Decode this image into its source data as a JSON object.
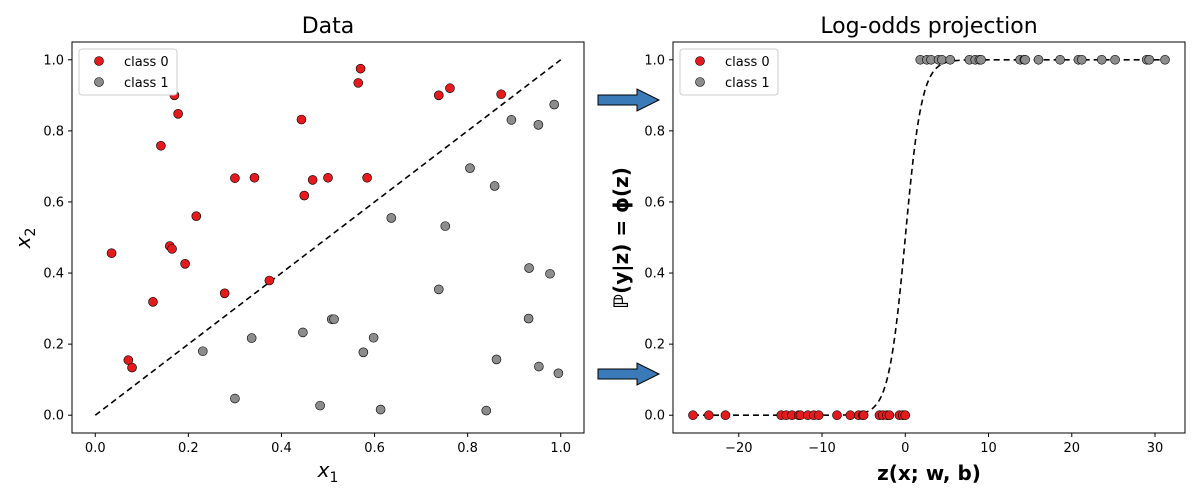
{
  "colors": {
    "class0": "#e41a1c",
    "class1": "#8c8c8c",
    "arrow": "#3a7ab8",
    "line": "#000000"
  },
  "chart_data": [
    {
      "type": "scatter",
      "title": "Data",
      "xlabel": "x",
      "xlabel_sub": "1",
      "ylabel": "x",
      "ylabel_sub": "2",
      "xlim": [
        -0.05,
        1.05
      ],
      "ylim": [
        -0.05,
        1.05
      ],
      "xticks": [
        "0.0",
        "0.2",
        "0.4",
        "0.6",
        "0.8",
        "1.0"
      ],
      "yticks": [
        "0.0",
        "0.2",
        "0.4",
        "0.6",
        "0.8",
        "1.0"
      ],
      "grid": false,
      "legend_position": "upper-left",
      "boundary_line": {
        "x": [
          0.0,
          1.0
        ],
        "y": [
          0.0,
          1.0
        ],
        "style": "dashed"
      },
      "series": [
        {
          "name": "class 0",
          "points": [
            [
              0.57,
              0.975
            ],
            [
              0.565,
              0.935
            ],
            [
              0.17,
              0.9
            ],
            [
              0.762,
              0.92
            ],
            [
              0.738,
              0.9
            ],
            [
              0.872,
              0.903
            ],
            [
              0.178,
              0.848
            ],
            [
              0.443,
              0.832
            ],
            [
              0.141,
              0.758
            ],
            [
              0.3,
              0.667
            ],
            [
              0.342,
              0.668
            ],
            [
              0.467,
              0.662
            ],
            [
              0.5,
              0.668
            ],
            [
              0.584,
              0.668
            ],
            [
              0.449,
              0.618
            ],
            [
              0.217,
              0.56
            ],
            [
              0.035,
              0.456
            ],
            [
              0.16,
              0.476
            ],
            [
              0.165,
              0.468
            ],
            [
              0.193,
              0.426
            ],
            [
              0.374,
              0.379
            ],
            [
              0.278,
              0.343
            ],
            [
              0.124,
              0.319
            ],
            [
              0.071,
              0.155
            ],
            [
              0.079,
              0.134
            ]
          ]
        },
        {
          "name": "class 1",
          "points": [
            [
              0.986,
              0.874
            ],
            [
              0.894,
              0.831
            ],
            [
              0.952,
              0.817
            ],
            [
              0.805,
              0.695
            ],
            [
              0.858,
              0.645
            ],
            [
              0.636,
              0.555
            ],
            [
              0.752,
              0.532
            ],
            [
              0.932,
              0.414
            ],
            [
              0.977,
              0.398
            ],
            [
              0.738,
              0.354
            ],
            [
              0.508,
              0.27
            ],
            [
              0.513,
              0.27
            ],
            [
              0.931,
              0.272
            ],
            [
              0.446,
              0.233
            ],
            [
              0.336,
              0.217
            ],
            [
              0.598,
              0.218
            ],
            [
              0.231,
              0.18
            ],
            [
              0.576,
              0.177
            ],
            [
              0.862,
              0.157
            ],
            [
              0.953,
              0.137
            ],
            [
              0.995,
              0.118
            ],
            [
              0.3,
              0.047
            ],
            [
              0.483,
              0.027
            ],
            [
              0.613,
              0.016
            ],
            [
              0.84,
              0.013
            ]
          ]
        }
      ]
    },
    {
      "type": "scatter",
      "title": "Log-odds projection",
      "xlabel": "z(x; w, b)",
      "ylabel": "ℙ(y|z) = ϕ(z)",
      "xlim": [
        -27.9,
        33.6
      ],
      "ylim": [
        -0.05,
        1.05
      ],
      "xticks": [
        -20,
        -10,
        0,
        10,
        20,
        30
      ],
      "xtick_labels": [
        "−20",
        "−10",
        "0",
        "10",
        "20",
        "30"
      ],
      "yticks": [
        "0.0",
        "0.2",
        "0.4",
        "0.6",
        "0.8",
        "1.0"
      ],
      "grid": false,
      "legend_position": "upper-left",
      "sigmoid_curve": {
        "x_range": [
          -25.5,
          31.2
        ],
        "style": "dashed"
      },
      "series": [
        {
          "name": "class 0",
          "y": 0,
          "x": [
            -25.5,
            -23.6,
            -21.6,
            -14.9,
            -14.3,
            -13.6,
            -12.8,
            -12.6,
            -11.7,
            -11.0,
            -10.4,
            -8.2,
            -6.6,
            -5.6,
            -5.1,
            -5.0,
            -3.1,
            -2.7,
            -2.2,
            -1.9,
            -0.7,
            -0.3,
            0.0
          ]
        },
        {
          "name": "class 1",
          "y": 1,
          "x": [
            1.8,
            2.6,
            3.1,
            4.0,
            4.4,
            5.4,
            7.7,
            8.4,
            8.9,
            9.1,
            13.8,
            14.3,
            14.4,
            16.0,
            18.6,
            20.8,
            21.2,
            23.6,
            25.2,
            29.0,
            29.3,
            31.2
          ]
        }
      ]
    }
  ],
  "legend_labels": [
    "class 0",
    "class 1"
  ]
}
